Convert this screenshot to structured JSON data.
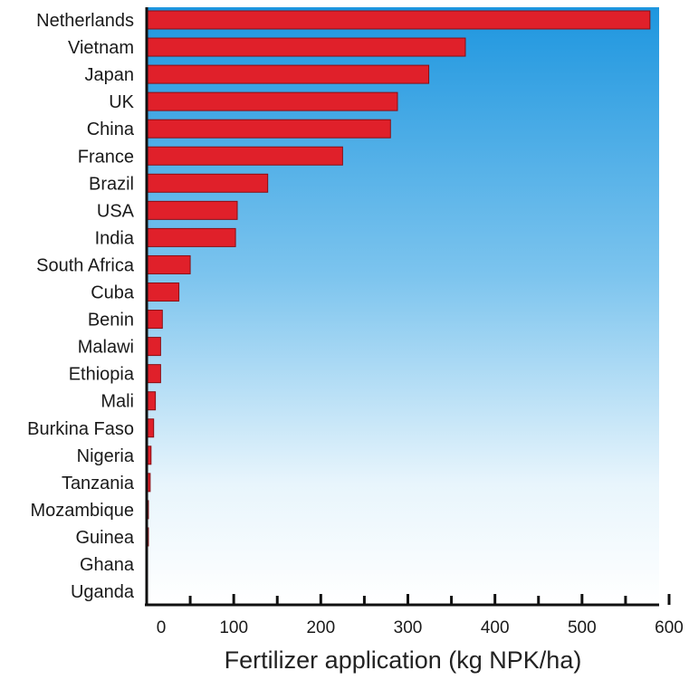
{
  "chart_data": {
    "type": "bar",
    "orientation": "horizontal",
    "categories": [
      "Netherlands",
      "Vietnam",
      "Japan",
      "UK",
      "China",
      "France",
      "Brazil",
      "USA",
      "India",
      "South Africa",
      "Cuba",
      "Benin",
      "Malawi",
      "Ethiopia",
      "Mali",
      "Burkina Faso",
      "Nigeria",
      "Tanzania",
      "Mozambique",
      "Guinea",
      "Ghana",
      "Uganda"
    ],
    "values": [
      578,
      366,
      324,
      288,
      280,
      225,
      139,
      104,
      102,
      50,
      37,
      18,
      16,
      16,
      10,
      8,
      5,
      4,
      2,
      2,
      1,
      0
    ],
    "xlabel": "Fertilizer application (kg NPK/ha)",
    "ylabel": "",
    "title": "",
    "xlim": [
      0,
      600
    ],
    "xticks": [
      0,
      100,
      200,
      300,
      400,
      500,
      600
    ],
    "grid": false,
    "legend": false,
    "colors": {
      "bar": "#e0202a",
      "bar_edge": "#8a0e14",
      "background_top": "#1e96df",
      "background_bottom": "#ffffff",
      "axis": "#111111"
    }
  }
}
